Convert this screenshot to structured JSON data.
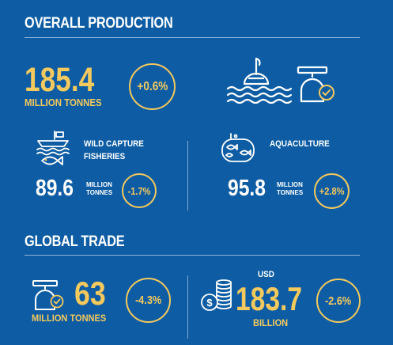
{
  "overall": {
    "title": "OVERALL PRODUCTION",
    "value": "185.4",
    "unit": "MILLION TONNES",
    "change": "+0.6%"
  },
  "wild": {
    "label_line1": "WILD CAPTURE",
    "label_line2": "FISHERIES",
    "value": "89.6",
    "unit_line1": "MILLION",
    "unit_line2": "TONNES",
    "change": "-1.7%"
  },
  "aqua": {
    "label": "AQUACULTURE",
    "value": "95.8",
    "unit_line1": "MILLION",
    "unit_line2": "TONNES",
    "change": "+2.8%"
  },
  "trade": {
    "title": "GLOBAL TRADE",
    "volume_value": "63",
    "volume_unit": "MILLION TONNES",
    "volume_change": "-4.3%",
    "currency": "USD",
    "value_value": "183.7",
    "value_unit": "BILLION",
    "value_change": "-2.6%"
  },
  "icons": {
    "fishing": "fishing-buoy-icon",
    "scale": "scale-check-icon",
    "boat": "fishing-boat-icon",
    "tank": "fish-tank-icon",
    "coins": "coins-dollar-icon"
  },
  "colors": {
    "background": "#0e5da4",
    "accent": "#f4c95d",
    "text": "#ffffff"
  }
}
